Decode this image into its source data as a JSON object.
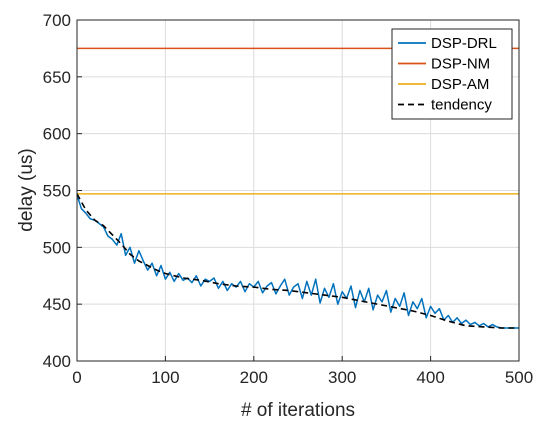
{
  "chart_data": {
    "type": "line",
    "title": "",
    "xlabel": "# of iterations",
    "ylabel": "delay (us)",
    "xlim": [
      0,
      500
    ],
    "ylim": [
      400,
      700
    ],
    "xticks": [
      "0",
      "100",
      "200",
      "300",
      "400",
      "500"
    ],
    "yticks": [
      "400",
      "450",
      "500",
      "550",
      "600",
      "650",
      "700"
    ],
    "grid": true,
    "legend_position": "top-right",
    "series": [
      {
        "name": "DSP-DRL",
        "color": "#0072BD",
        "style": "solid",
        "x": [
          0,
          5,
          10,
          15,
          20,
          25,
          30,
          35,
          40,
          45,
          50,
          55,
          60,
          65,
          70,
          75,
          80,
          85,
          90,
          95,
          100,
          105,
          110,
          115,
          120,
          125,
          130,
          135,
          140,
          145,
          150,
          155,
          160,
          165,
          170,
          175,
          180,
          185,
          190,
          195,
          200,
          205,
          210,
          215,
          220,
          225,
          230,
          235,
          240,
          245,
          250,
          255,
          260,
          265,
          270,
          275,
          280,
          285,
          290,
          295,
          300,
          305,
          310,
          315,
          320,
          325,
          330,
          335,
          340,
          345,
          350,
          355,
          360,
          365,
          370,
          375,
          380,
          385,
          390,
          395,
          400,
          405,
          410,
          415,
          420,
          425,
          430,
          435,
          440,
          445,
          450,
          455,
          460,
          465,
          470,
          475,
          480,
          485,
          490,
          495,
          500
        ],
        "values": [
          546,
          534,
          530,
          525,
          524,
          521,
          518,
          510,
          507,
          502,
          512,
          493,
          500,
          486,
          497,
          488,
          480,
          486,
          475,
          484,
          472,
          478,
          470,
          477,
          471,
          473,
          469,
          475,
          466,
          472,
          470,
          473,
          464,
          470,
          462,
          468,
          465,
          470,
          461,
          468,
          465,
          470,
          460,
          466,
          469,
          459,
          466,
          472,
          458,
          465,
          468,
          455,
          470,
          458,
          472,
          451,
          464,
          456,
          468,
          450,
          461,
          455,
          466,
          447,
          462,
          452,
          464,
          445,
          458,
          452,
          462,
          443,
          455,
          448,
          460,
          440,
          452,
          446,
          455,
          438,
          448,
          442,
          446,
          436,
          440,
          434,
          438,
          433,
          436,
          432,
          434,
          431,
          433,
          430,
          432,
          430,
          429,
          429,
          429,
          429,
          429
        ]
      },
      {
        "name": "DSP-NM",
        "color": "#D95319",
        "style": "solid",
        "x": [
          0,
          500
        ],
        "values": [
          675,
          675
        ]
      },
      {
        "name": "DSP-AM",
        "color": "#EDB120",
        "style": "solid",
        "x": [
          0,
          500
        ],
        "values": [
          547,
          547
        ]
      },
      {
        "name": "tendency",
        "color": "#000000",
        "style": "dashed",
        "x": [
          0,
          10,
          20,
          30,
          40,
          50,
          60,
          70,
          80,
          90,
          100,
          120,
          140,
          160,
          180,
          200,
          220,
          240,
          260,
          280,
          300,
          320,
          340,
          360,
          380,
          400,
          420,
          440,
          460,
          480,
          500
        ],
        "values": [
          547,
          533,
          524,
          519,
          511,
          503,
          494,
          488,
          484,
          480,
          477,
          473,
          471,
          468,
          466,
          465,
          463,
          462,
          460,
          458,
          456,
          453,
          450,
          447,
          444,
          440,
          435,
          431,
          430,
          429,
          429
        ]
      }
    ]
  }
}
